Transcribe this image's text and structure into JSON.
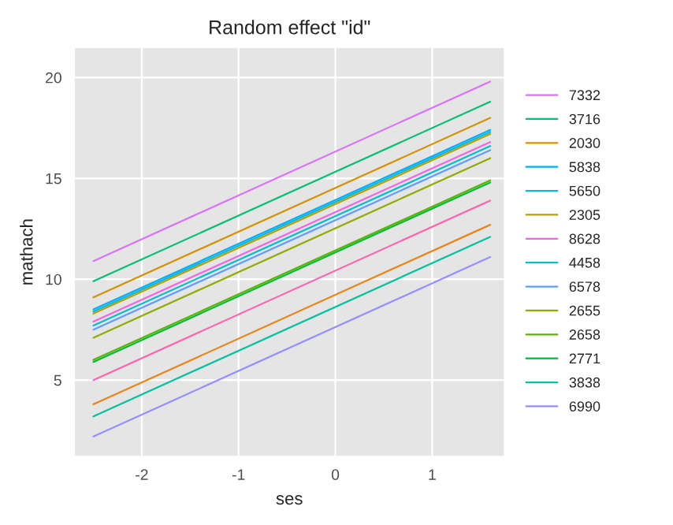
{
  "chart_data": {
    "type": "line",
    "title": "Random effect \"id\"",
    "xlabel": "ses",
    "ylabel": "mathach",
    "x": [
      -2.5,
      1.6
    ],
    "series": [
      {
        "name": "7332",
        "color": "#db72fb",
        "values": [
          10.9,
          19.8
        ]
      },
      {
        "name": "3716",
        "color": "#00bf74",
        "values": [
          9.9,
          18.8
        ]
      },
      {
        "name": "2030",
        "color": "#d39200",
        "values": [
          9.1,
          18.0
        ]
      },
      {
        "name": "5838",
        "color": "#00adfa",
        "values": [
          8.5,
          17.4
        ]
      },
      {
        "name": "5650",
        "color": "#00b9e3",
        "values": [
          8.4,
          17.3
        ]
      },
      {
        "name": "2305",
        "color": "#b79f00",
        "values": [
          8.3,
          17.2
        ]
      },
      {
        "name": "8628",
        "color": "#f564e3",
        "values": [
          7.9,
          16.8
        ]
      },
      {
        "name": "4458",
        "color": "#00bfc4",
        "values": [
          7.7,
          16.6
        ]
      },
      {
        "name": "6578",
        "color": "#619cff",
        "values": [
          7.5,
          16.4
        ]
      },
      {
        "name": "2655",
        "color": "#93aa00",
        "values": [
          7.1,
          16.0
        ]
      },
      {
        "name": "2658",
        "color": "#5eb300",
        "values": [
          6.0,
          14.9
        ]
      },
      {
        "name": "2771",
        "color": "#00ba38",
        "values": [
          5.9,
          14.8
        ]
      },
      {
        "color": "#ff64b0",
        "values": [
          5.0,
          13.9
        ]
      },
      {
        "color": "#e7861b",
        "values": [
          3.8,
          12.7
        ]
      },
      {
        "name": "3838",
        "color": "#00c19f",
        "values": [
          3.2,
          12.1
        ]
      },
      {
        "name": "6990",
        "color": "#9590ff",
        "values": [
          2.2,
          11.1
        ]
      }
    ],
    "xlim": [
      -2.7,
      1.75
    ],
    "ylim": [
      1.2,
      21.5
    ],
    "xticks": [
      -2,
      -1,
      0,
      1
    ],
    "yticks": [
      5,
      10,
      15,
      20
    ],
    "grid": true,
    "legend": "right"
  }
}
